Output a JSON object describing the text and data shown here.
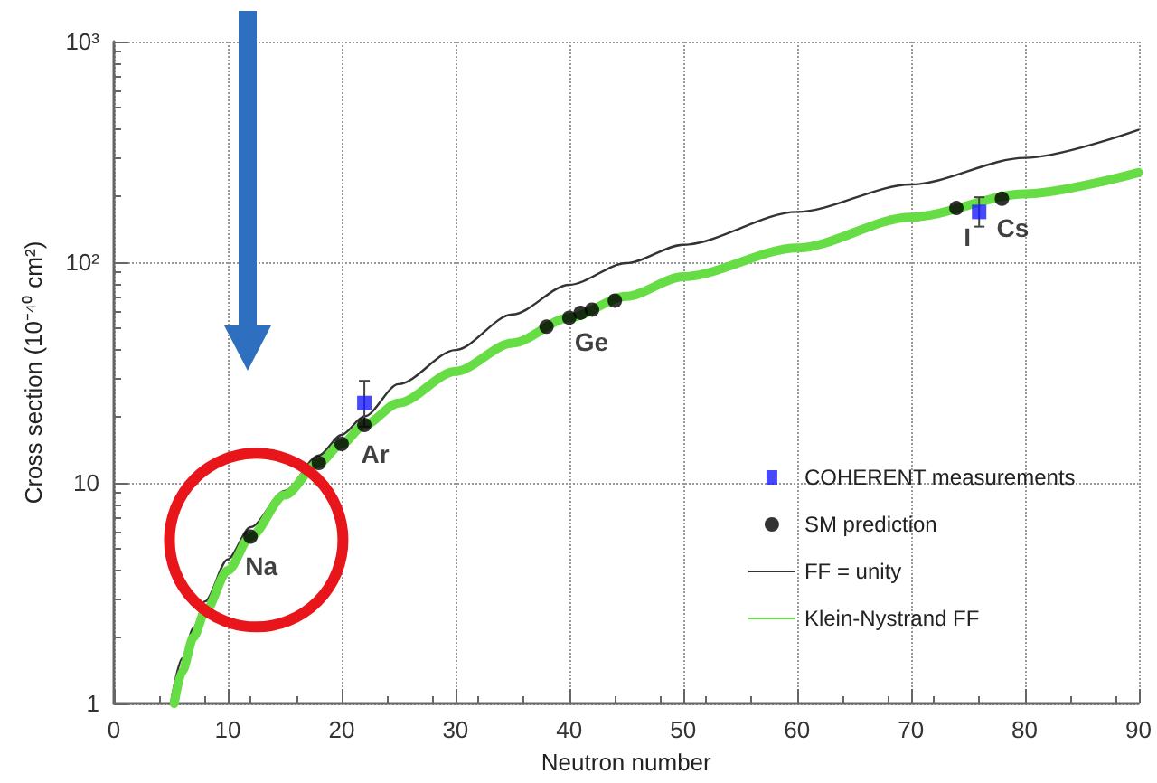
{
  "chart_data": {
    "type": "line",
    "xlabel": "Neutron number",
    "ylabel": "Cross section (10⁻⁴⁰ cm²)",
    "xlim": [
      0,
      90
    ],
    "xticks": [
      0,
      10,
      20,
      30,
      40,
      50,
      60,
      70,
      80,
      90
    ],
    "ylim": [
      1,
      1000
    ],
    "yticks": [
      1,
      10,
      {
        "value": 100,
        "label": "10²"
      },
      {
        "value": 1000,
        "label": "10³"
      }
    ],
    "log": "y",
    "grid": true,
    "legend": "bottom right",
    "series": [
      {
        "name": "COHERENT measurements",
        "type": "scatter",
        "marker": "square",
        "color": "#1a1aff",
        "x": [
          22,
          76
        ],
        "values": [
          23,
          169
        ],
        "errors": [
          [
            18,
            29
          ],
          [
            145,
            197
          ]
        ]
      },
      {
        "name": "SM prediction",
        "type": "scatter",
        "marker": "circle",
        "color": "#000000",
        "x": [
          12,
          18,
          20,
          22,
          38,
          40,
          41,
          42,
          44,
          74,
          78
        ],
        "values": [
          5.7,
          12.3,
          15,
          18.3,
          51,
          56,
          59,
          61,
          67,
          176,
          194
        ]
      },
      {
        "name": "FF = unity",
        "type": "line",
        "marker": "none",
        "line_style": "solid",
        "color": "#333333",
        "x": [
          5,
          6,
          7,
          8,
          10,
          12,
          15,
          18,
          20,
          22,
          25,
          30,
          35,
          40,
          45,
          50,
          60,
          70,
          80,
          90
        ],
        "values": [
          1,
          1.6,
          2.2,
          2.9,
          4.5,
          6.3,
          9.2,
          13.3,
          16.5,
          20,
          28,
          40,
          58,
          79,
          99,
          120,
          169,
          225,
          297,
          398
        ]
      },
      {
        "name": "Klein-Nystrand FF",
        "type": "line",
        "marker": "none",
        "line_style": "solid",
        "color": "#66dd44",
        "x": [
          5.3,
          6,
          7,
          8,
          10,
          12,
          15,
          18,
          20,
          22,
          25,
          30,
          35,
          40,
          45,
          50,
          60,
          70,
          80,
          90
        ],
        "values": [
          1,
          1.4,
          2,
          2.6,
          4,
          5.7,
          8.8,
          12.3,
          15,
          18.3,
          23,
          32,
          43,
          56,
          70,
          86,
          116,
          160,
          204,
          255
        ]
      }
    ],
    "annotations": [
      {
        "text": "Na",
        "x": 12,
        "y": 5.7
      },
      {
        "text": "Ar",
        "x": 22,
        "y": 18.3
      },
      {
        "text": "Ge",
        "x": 41,
        "y": 59
      },
      {
        "text": "I",
        "x": 74,
        "y": 176
      },
      {
        "text": "Cs",
        "x": 78,
        "y": 194
      }
    ]
  }
}
